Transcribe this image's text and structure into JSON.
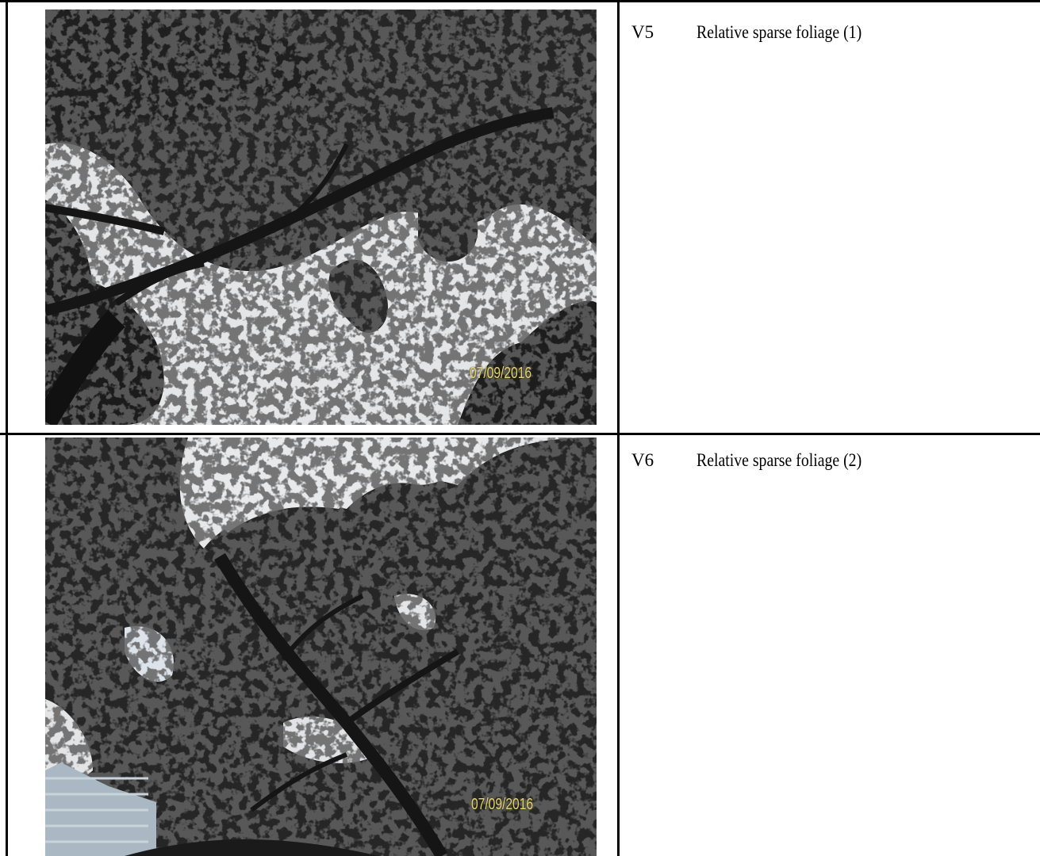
{
  "rows": [
    {
      "code": "V5",
      "description": "Relative sparse foliage (1)",
      "photo_stamp": "07/09/2016"
    },
    {
      "code": "V6",
      "description": "Relative sparse foliage (2)",
      "photo_stamp": "07/09/2016"
    }
  ]
}
